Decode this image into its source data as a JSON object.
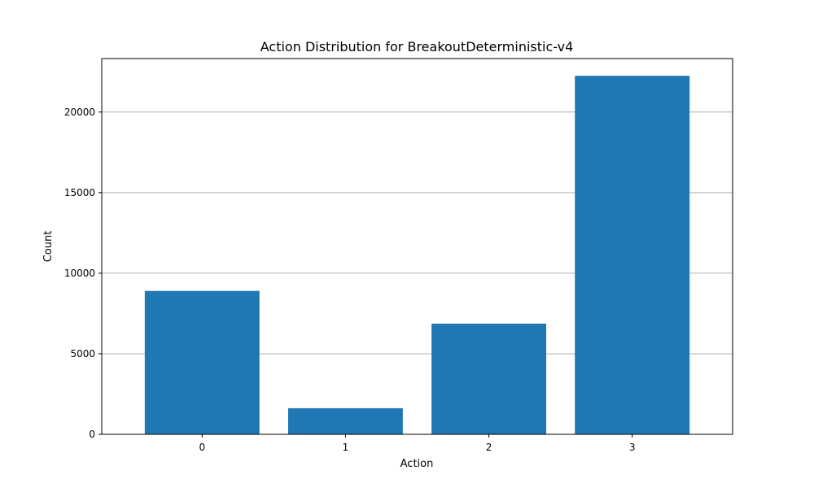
{
  "chart_data": {
    "type": "bar",
    "title": "Action Distribution for BreakoutDeterministic-v4",
    "xlabel": "Action",
    "ylabel": "Count",
    "categories": [
      "0",
      "1",
      "2",
      "3"
    ],
    "values": [
      8900,
      1620,
      6870,
      22250
    ],
    "ylim": [
      0,
      23320
    ],
    "yticks": [
      0,
      5000,
      10000,
      15000,
      20000
    ],
    "ytick_labels": [
      "0",
      "5000",
      "10000",
      "15000",
      "20000"
    ],
    "grid": "y",
    "bar_color": "#1f77b4",
    "grid_color": "#b0b0b0"
  }
}
